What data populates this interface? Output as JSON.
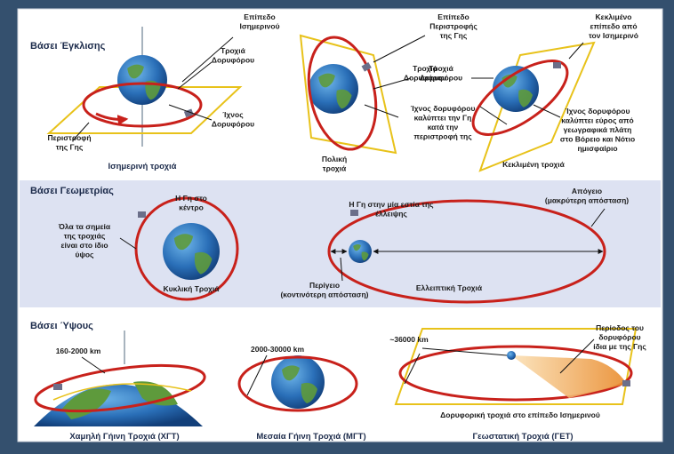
{
  "inclination": {
    "title": "Βάσει Έγκλισης",
    "equatorial": {
      "plane": [
        "Επίπεδο",
        "Ισημερινού"
      ],
      "orbit": [
        "Τροχιά",
        "Δορυφόρου"
      ],
      "track": [
        "Ίχνος",
        "Δορυφόρου"
      ],
      "rotation": [
        "Περιστροφή",
        "της Γης"
      ],
      "caption": "Ισημερινή τροχιά"
    },
    "polar": {
      "plane": [
        "Επίπεδο",
        "Περιστροφής",
        "της Γης"
      ],
      "orbit": [
        "Τροχιά",
        "Δορυφόρου"
      ],
      "track": [
        "Ίχνος δορυφόρου",
        "καλύπτει την Γη",
        "κατά την",
        "περιστροφή της"
      ],
      "caption": [
        "Πολική",
        "τροχιά"
      ]
    },
    "inclined": {
      "plane": [
        "Κεκλιμένο",
        "επίπεδο από",
        "τον Ισημερινό"
      ],
      "orbit": [
        "Τροχιά",
        "Δορυφόρου"
      ],
      "track": [
        "Ίχνος δορυφόρου",
        "καλύπτει εύρος από",
        "γεωγραφικά πλάτη",
        "στο Βόρειο και Νότιο",
        "ημισφαίριο"
      ],
      "caption": "Κεκλιμένη τροχιά"
    }
  },
  "geometry": {
    "title": "Βάσει Γεωμετρίας",
    "circular": {
      "center": [
        "Η Γη στο",
        "κέντρο"
      ],
      "note": [
        "Όλα τα σημεία",
        "της τροχιάς",
        "είναι στο ίδιο",
        "ύψος"
      ],
      "caption": "Κυκλική Τροχιά"
    },
    "elliptical": {
      "focus": [
        "Η Γη στην μία εστία της",
        "έλλειψης"
      ],
      "apogee": [
        "Απόγειο",
        "(μακρύτερη απόσταση)"
      ],
      "perigee": [
        "Περίγειο",
        "(κοντινότερη απόσταση)"
      ],
      "caption": "Ελλειπτική Τροχιά"
    }
  },
  "altitude": {
    "title": "Βάσει Ύψους",
    "leo": {
      "range": "160-2000 km",
      "caption": "Χαμηλή Γήινη Τροχιά (ΧΓΤ)"
    },
    "meo": {
      "range": "2000-30000 km",
      "caption": "Μεσαία Γήινη Τροχιά (ΜΓΤ)"
    },
    "geo": {
      "range": "~36000 km",
      "period": [
        "Περίοδος του",
        "δορυφόρου",
        "ίδια με της Γης"
      ],
      "plane": "Δορυφορική τροχιά στο επίπεδο Ισημερινού",
      "caption": "Γεωστατική Τροχιά (ΓΕΤ)"
    }
  }
}
